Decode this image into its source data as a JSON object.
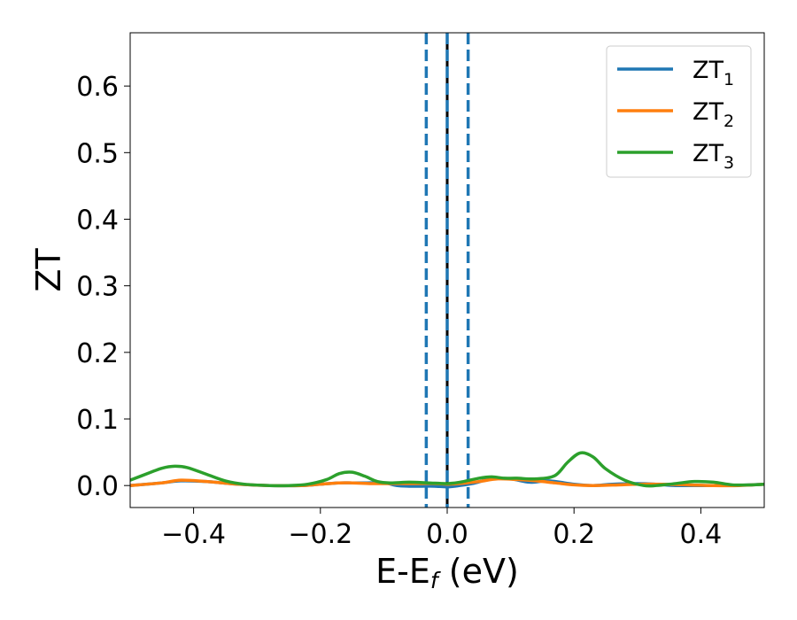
{
  "chart_data": {
    "type": "line",
    "xlabel": "E-E",
    "xlabel_sub": "f",
    "xlabel_unit": " (eV)",
    "ylabel": "ZT",
    "xlim": [
      -0.5,
      0.5
    ],
    "ylim": [
      -0.033,
      0.68
    ],
    "xticks": [
      -0.4,
      -0.2,
      0.0,
      0.2,
      0.4
    ],
    "xtick_labels": [
      "−0.4",
      "−0.2",
      "0.0",
      "0.2",
      "0.4"
    ],
    "yticks": [
      0.0,
      0.1,
      0.2,
      0.3,
      0.4,
      0.5,
      0.6
    ],
    "ytick_labels": [
      "0.0",
      "0.1",
      "0.2",
      "0.3",
      "0.4",
      "0.5",
      "0.6"
    ],
    "grid": false,
    "legend_placement": "top-right",
    "vertical_lines": [
      {
        "x": -0.033,
        "style": "dashed",
        "color": "#1f77b4"
      },
      {
        "x": 0.0,
        "style": "solid",
        "color": "#000000"
      },
      {
        "x": 0.0,
        "style": "dashed",
        "color": "#1f77b4"
      },
      {
        "x": 0.033,
        "style": "dashed",
        "color": "#1f77b4"
      }
    ],
    "series": [
      {
        "name": "ZT",
        "name_sub": "1",
        "color": "#1f77b4",
        "x": [
          -0.5,
          -0.45,
          -0.42,
          -0.38,
          -0.33,
          -0.28,
          -0.23,
          -0.2,
          -0.17,
          -0.15,
          -0.13,
          -0.1,
          -0.08,
          -0.06,
          -0.04,
          -0.02,
          0.0,
          0.02,
          0.04,
          0.07,
          0.1,
          0.13,
          0.16,
          0.2,
          0.23,
          0.26,
          0.3,
          0.33,
          0.36,
          0.4,
          0.45,
          0.5
        ],
        "y": [
          0.0,
          0.004,
          0.007,
          0.006,
          0.002,
          0.0,
          0.0,
          0.002,
          0.004,
          0.004,
          0.004,
          0.004,
          0.0,
          -0.001,
          -0.001,
          -0.001,
          -0.002,
          0.0,
          0.003,
          0.01,
          0.01,
          0.005,
          0.007,
          0.002,
          0.0,
          0.002,
          0.003,
          0.002,
          0.0,
          0.0,
          0.0,
          0.002
        ]
      },
      {
        "name": "ZT",
        "name_sub": "2",
        "color": "#ff7f0e",
        "x": [
          -0.5,
          -0.45,
          -0.42,
          -0.38,
          -0.33,
          -0.28,
          -0.23,
          -0.2,
          -0.17,
          -0.15,
          -0.12,
          -0.1,
          -0.07,
          -0.04,
          -0.02,
          0.0,
          0.02,
          0.05,
          0.08,
          0.11,
          0.14,
          0.17,
          0.2,
          0.23,
          0.27,
          0.3,
          0.34,
          0.38,
          0.42,
          0.46,
          0.5
        ],
        "y": [
          0.0,
          0.004,
          0.008,
          0.006,
          0.002,
          0.0,
          0.0,
          0.002,
          0.004,
          0.004,
          0.003,
          0.003,
          0.003,
          0.003,
          0.003,
          0.002,
          0.003,
          0.006,
          0.01,
          0.009,
          0.007,
          0.004,
          0.001,
          0.0,
          0.001,
          0.002,
          0.002,
          0.001,
          0.0,
          0.0,
          0.002
        ]
      },
      {
        "name": "ZT",
        "name_sub": "3",
        "color": "#2ca02c",
        "x": [
          -0.5,
          -0.47,
          -0.45,
          -0.43,
          -0.41,
          -0.38,
          -0.35,
          -0.32,
          -0.28,
          -0.25,
          -0.22,
          -0.19,
          -0.17,
          -0.15,
          -0.13,
          -0.11,
          -0.09,
          -0.06,
          -0.03,
          0.0,
          0.02,
          0.05,
          0.07,
          0.09,
          0.11,
          0.14,
          0.17,
          0.19,
          0.21,
          0.23,
          0.25,
          0.28,
          0.31,
          0.33,
          0.36,
          0.39,
          0.42,
          0.45,
          0.48,
          0.5
        ],
        "y": [
          0.008,
          0.019,
          0.026,
          0.029,
          0.027,
          0.017,
          0.007,
          0.002,
          0.0,
          0.0,
          0.002,
          0.009,
          0.018,
          0.02,
          0.014,
          0.006,
          0.004,
          0.005,
          0.004,
          0.003,
          0.005,
          0.011,
          0.013,
          0.011,
          0.011,
          0.01,
          0.015,
          0.035,
          0.049,
          0.043,
          0.025,
          0.008,
          0.0,
          0.0,
          0.003,
          0.006,
          0.005,
          0.001,
          0.001,
          0.002
        ]
      }
    ]
  }
}
